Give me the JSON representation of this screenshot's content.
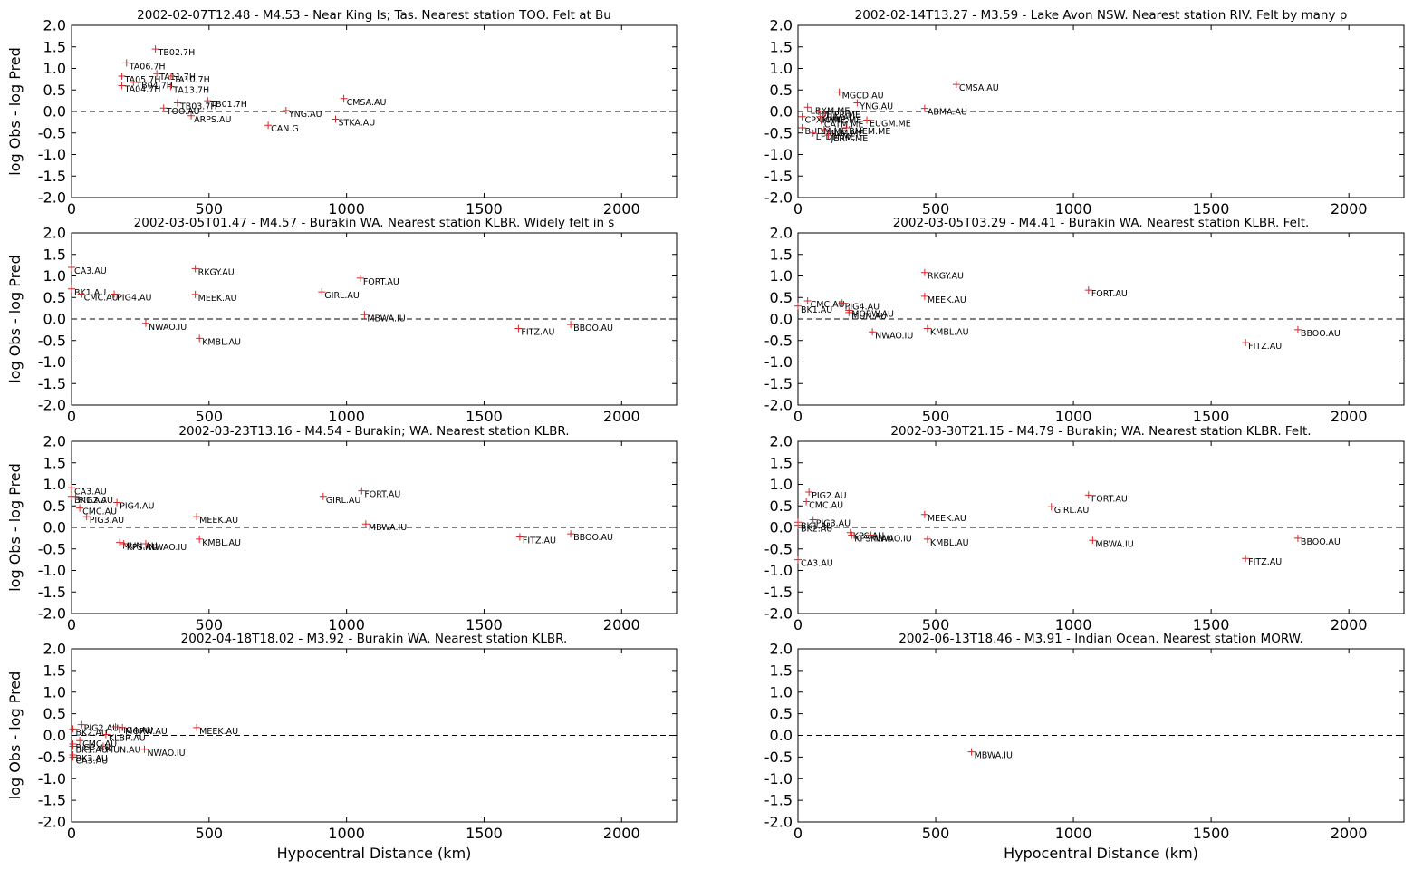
{
  "colors": {
    "marker": "#d62728",
    "axis": "#000000",
    "zero_line": "#000000"
  },
  "chart_data": [
    {
      "type": "scatter",
      "title": "2002-02-07T12.48 - M4.53 - Near King Is; Tas. Nearest station TOO. Felt at Bu",
      "xlabel": "",
      "ylabel": "log Obs - log Pred",
      "xlim": [
        0,
        2200
      ],
      "ylim": [
        -2.0,
        2.0
      ],
      "xticks": [
        "0",
        "500",
        "1000",
        "1500",
        "2000"
      ],
      "yticks": [
        "2.0",
        "1.5",
        "1.0",
        "0.5",
        "0.0",
        "-0.5",
        "-1.0",
        "-1.5",
        "-2.0"
      ],
      "zero_line": "dashed",
      "points": [
        {
          "label": "TB02.7H",
          "x": 305,
          "y": 1.45
        },
        {
          "label": "TA06.7H",
          "x": 200,
          "y": 1.13
        },
        {
          "label": "TA11.7H",
          "x": 310,
          "y": 0.88
        },
        {
          "label": "TA05.7H",
          "x": 183,
          "y": 0.82
        },
        {
          "label": "TA10.7H",
          "x": 362,
          "y": 0.82
        },
        {
          "label": "TB04.7H",
          "x": 225,
          "y": 0.68
        },
        {
          "label": "TA04.7H",
          "x": 183,
          "y": 0.6
        },
        {
          "label": "TA13.7H",
          "x": 360,
          "y": 0.58
        },
        {
          "label": "TB03.7H",
          "x": 385,
          "y": 0.2
        },
        {
          "label": "TB01.7H",
          "x": 495,
          "y": 0.25
        },
        {
          "label": "TOO.AU",
          "x": 335,
          "y": 0.08
        },
        {
          "label": "YNG.AU",
          "x": 780,
          "y": 0.02
        },
        {
          "label": "CMSA.AU",
          "x": 990,
          "y": 0.3
        },
        {
          "label": "ARPS.AU",
          "x": 435,
          "y": -0.1
        },
        {
          "label": "STKA.AU",
          "x": 960,
          "y": -0.18
        },
        {
          "label": "CAN.G",
          "x": 715,
          "y": -0.32
        }
      ]
    },
    {
      "type": "scatter",
      "title": "2002-02-14T13.27 - M3.59 - Lake Avon NSW. Nearest station RIV. Felt by many p",
      "xlabel": "",
      "ylabel": "",
      "xlim": [
        0,
        2200
      ],
      "ylim": [
        -2.0,
        2.0
      ],
      "xticks": [
        "0",
        "500",
        "1000",
        "1500",
        "2000"
      ],
      "yticks": [
        "2.0",
        "1.5",
        "1.0",
        "0.5",
        "0.0",
        "-0.5",
        "-1.0",
        "-1.5",
        "-2.0"
      ],
      "zero_line": "dashed",
      "points": [
        {
          "label": "CMSA.AU",
          "x": 575,
          "y": 0.63
        },
        {
          "label": "MGCD.AU",
          "x": 150,
          "y": 0.45
        },
        {
          "label": "YNG.AU",
          "x": 215,
          "y": 0.2
        },
        {
          "label": "LBXM.ME",
          "x": 35,
          "y": 0.1
        },
        {
          "label": "ABMA.AU",
          "x": 460,
          "y": 0.07
        },
        {
          "label": "MTPR.ME",
          "x": 75,
          "y": 0.0
        },
        {
          "label": "RIV.AU",
          "x": 95,
          "y": -0.05
        },
        {
          "label": "CPXM.ME",
          "x": 15,
          "y": -0.12
        },
        {
          "label": "KANE.ME",
          "x": 80,
          "y": -0.12
        },
        {
          "label": "EUGM.ME",
          "x": 250,
          "y": -0.2
        },
        {
          "label": "CATM.ME",
          "x": 85,
          "y": -0.22
        },
        {
          "label": "BUDM.ME",
          "x": 15,
          "y": -0.38
        },
        {
          "label": "BMEM.ME",
          "x": 175,
          "y": -0.38
        },
        {
          "label": "MNM.ME",
          "x": 95,
          "y": -0.42
        },
        {
          "label": "LFDM.ME",
          "x": 55,
          "y": -0.5
        },
        {
          "label": "JERM.ME",
          "x": 110,
          "y": -0.55
        }
      ]
    },
    {
      "type": "scatter",
      "title": "2002-03-05T01.47 - M4.57 - Burakin WA. Nearest station KLBR. Widely felt in s",
      "xlabel": "",
      "ylabel": "log Obs - log Pred",
      "xlim": [
        0,
        2200
      ],
      "ylim": [
        -2.0,
        2.0
      ],
      "xticks": [
        "0",
        "500",
        "1000",
        "1500",
        "2000"
      ],
      "yticks": [
        "2.0",
        "1.5",
        "1.0",
        "0.5",
        "0.0",
        "-0.5",
        "-1.0",
        "-1.5",
        "-2.0"
      ],
      "zero_line": "dashed",
      "points": [
        {
          "label": "CA3.AU",
          "x": 0,
          "y": 1.2
        },
        {
          "label": "RKGY.AU",
          "x": 450,
          "y": 1.17
        },
        {
          "label": "FORT.AU",
          "x": 1050,
          "y": 0.95
        },
        {
          "label": "BK1.AU",
          "x": 0,
          "y": 0.7
        },
        {
          "label": "GIRL.AU",
          "x": 910,
          "y": 0.63
        },
        {
          "label": "CMC.AU",
          "x": 35,
          "y": 0.58
        },
        {
          "label": "PIG4.AU",
          "x": 155,
          "y": 0.58
        },
        {
          "label": "MEEK.AU",
          "x": 450,
          "y": 0.57
        },
        {
          "label": "MBWA.IU",
          "x": 1065,
          "y": 0.1
        },
        {
          "label": "NWAO.IU",
          "x": 270,
          "y": -0.1
        },
        {
          "label": "BBOO.AU",
          "x": 1815,
          "y": -0.13
        },
        {
          "label": "FITZ.AU",
          "x": 1625,
          "y": -0.22
        },
        {
          "label": "KMBL.AU",
          "x": 465,
          "y": -0.45
        }
      ]
    },
    {
      "type": "scatter",
      "title": "2002-03-05T03.29 - M4.41 - Burakin WA. Nearest station KLBR. Felt.",
      "xlabel": "",
      "ylabel": "",
      "xlim": [
        0,
        2200
      ],
      "ylim": [
        -2.0,
        2.0
      ],
      "xticks": [
        "0",
        "500",
        "1000",
        "1500",
        "2000"
      ],
      "yticks": [
        "2.0",
        "1.5",
        "1.0",
        "0.5",
        "0.0",
        "-0.5",
        "-1.0",
        "-1.5",
        "-2.0"
      ],
      "zero_line": "dashed",
      "points": [
        {
          "label": "RKGY.AU",
          "x": 460,
          "y": 1.08
        },
        {
          "label": "FORT.AU",
          "x": 1055,
          "y": 0.67
        },
        {
          "label": "MEEK.AU",
          "x": 460,
          "y": 0.53
        },
        {
          "label": "CMC.AU",
          "x": 35,
          "y": 0.42
        },
        {
          "label": "PIG4.AU",
          "x": 160,
          "y": 0.37
        },
        {
          "label": "BK1.AU",
          "x": 0,
          "y": 0.3
        },
        {
          "label": "MORW.AU",
          "x": 185,
          "y": 0.2
        },
        {
          "label": "MUN.AU",
          "x": 185,
          "y": 0.15
        },
        {
          "label": "KMBL.AU",
          "x": 470,
          "y": -0.22
        },
        {
          "label": "BBOO.AU",
          "x": 1815,
          "y": -0.25
        },
        {
          "label": "NWAO.IU",
          "x": 270,
          "y": -0.3
        },
        {
          "label": "FITZ.AU",
          "x": 1625,
          "y": -0.55
        }
      ]
    },
    {
      "type": "scatter",
      "title": "2002-03-23T13.16 - M4.54 - Burakin; WA. Nearest station KLBR.",
      "xlabel": "",
      "ylabel": "log Obs - log Pred",
      "xlim": [
        0,
        2200
      ],
      "ylim": [
        -2.0,
        2.0
      ],
      "xticks": [
        "0",
        "500",
        "1000",
        "1500",
        "2000"
      ],
      "yticks": [
        "2.0",
        "1.5",
        "1.0",
        "0.5",
        "0.0",
        "-0.5",
        "-1.0",
        "-1.5",
        "-2.0"
      ],
      "zero_line": "dashed",
      "points": [
        {
          "label": "CA3.AU",
          "x": 0,
          "y": 0.92
        },
        {
          "label": "FORT.AU",
          "x": 1055,
          "y": 0.85
        },
        {
          "label": "GIRL.AU",
          "x": 915,
          "y": 0.72
        },
        {
          "label": "BK1.AU",
          "x": 0,
          "y": 0.72
        },
        {
          "label": "PIG2.AU",
          "x": 15,
          "y": 0.72
        },
        {
          "label": "PIG4.AU",
          "x": 165,
          "y": 0.58
        },
        {
          "label": "CMC.AU",
          "x": 30,
          "y": 0.45
        },
        {
          "label": "PIG3.AU",
          "x": 55,
          "y": 0.25
        },
        {
          "label": "MEEK.AU",
          "x": 455,
          "y": 0.25
        },
        {
          "label": "MBWA.IU",
          "x": 1070,
          "y": 0.08
        },
        {
          "label": "BBOO.AU",
          "x": 1815,
          "y": -0.15
        },
        {
          "label": "FITZ.AU",
          "x": 1630,
          "y": -0.22
        },
        {
          "label": "KMBL.AU",
          "x": 465,
          "y": -0.27
        },
        {
          "label": "MUN.AU",
          "x": 175,
          "y": -0.35
        },
        {
          "label": "KPS.AU",
          "x": 190,
          "y": -0.38
        },
        {
          "label": "NWAO.IU",
          "x": 270,
          "y": -0.38
        }
      ]
    },
    {
      "type": "scatter",
      "title": "2002-03-30T21.15 - M4.79 - Burakin; WA. Nearest station KLBR. Felt.",
      "xlabel": "",
      "ylabel": "",
      "xlim": [
        0,
        2200
      ],
      "ylim": [
        -2.0,
        2.0
      ],
      "xticks": [
        "0",
        "500",
        "1000",
        "1500",
        "2000"
      ],
      "yticks": [
        "2.0",
        "1.5",
        "1.0",
        "0.5",
        "0.0",
        "-0.5",
        "-1.0",
        "-1.5",
        "-2.0"
      ],
      "zero_line": "dashed",
      "points": [
        {
          "label": "PIG2.AU",
          "x": 40,
          "y": 0.82
        },
        {
          "label": "FORT.AU",
          "x": 1055,
          "y": 0.75
        },
        {
          "label": "CMC.AU",
          "x": 30,
          "y": 0.6
        },
        {
          "label": "GIRL.AU",
          "x": 920,
          "y": 0.48
        },
        {
          "label": "MEEK.AU",
          "x": 460,
          "y": 0.3
        },
        {
          "label": "PIG3.AU",
          "x": 55,
          "y": 0.18
        },
        {
          "label": "BK1.AU",
          "x": 0,
          "y": 0.12
        },
        {
          "label": "BK2.AU",
          "x": 0,
          "y": 0.05
        },
        {
          "label": "KPS.AU",
          "x": 190,
          "y": -0.12
        },
        {
          "label": "KPSM.AU",
          "x": 195,
          "y": -0.18
        },
        {
          "label": "NWAO.IU",
          "x": 265,
          "y": -0.18
        },
        {
          "label": "BBOO.AU",
          "x": 1815,
          "y": -0.25
        },
        {
          "label": "KMBL.AU",
          "x": 470,
          "y": -0.27
        },
        {
          "label": "MBWA.IU",
          "x": 1070,
          "y": -0.3
        },
        {
          "label": "FITZ.AU",
          "x": 1625,
          "y": -0.72
        },
        {
          "label": "CA3.AU",
          "x": 0,
          "y": -0.75
        }
      ]
    },
    {
      "type": "scatter",
      "title": "2002-04-18T18.02 - M3.92 - Burakin WA. Nearest station KLBR.",
      "xlabel": "Hypocentral Distance (km)",
      "ylabel": "log Obs - log Pred",
      "xlim": [
        0,
        2200
      ],
      "ylim": [
        -2.0,
        2.0
      ],
      "xticks": [
        "0",
        "500",
        "1000",
        "1500",
        "2000"
      ],
      "yticks": [
        "2.0",
        "1.5",
        "1.0",
        "0.5",
        "0.0",
        "-0.5",
        "-1.0",
        "-1.5",
        "-2.0"
      ],
      "zero_line": "dashed",
      "points": [
        {
          "label": "PIG2.AU",
          "x": 35,
          "y": 0.25
        },
        {
          "label": "PIG4.AU",
          "x": 160,
          "y": 0.2
        },
        {
          "label": "MORW.AU",
          "x": 185,
          "y": 0.18
        },
        {
          "label": "MEEK.AU",
          "x": 455,
          "y": 0.18
        },
        {
          "label": "BK2.AU",
          "x": 5,
          "y": 0.15
        },
        {
          "label": "KLBR.AU",
          "x": 125,
          "y": 0.02
        },
        {
          "label": "CMC.AU",
          "x": 30,
          "y": -0.12
        },
        {
          "label": "PIG3.AU",
          "x": 5,
          "y": -0.2
        },
        {
          "label": "BK1.AU",
          "x": 5,
          "y": -0.25
        },
        {
          "label": "MUN.AU",
          "x": 115,
          "y": -0.25
        },
        {
          "label": "NWAO.IU",
          "x": 265,
          "y": -0.32
        },
        {
          "label": "BK3.AU",
          "x": 5,
          "y": -0.45
        },
        {
          "label": "CA3.AU",
          "x": 5,
          "y": -0.5
        }
      ]
    },
    {
      "type": "scatter",
      "title": "2002-06-13T18.46 - M3.91 - Indian Ocean. Nearest station MORW.",
      "xlabel": "Hypocentral Distance (km)",
      "ylabel": "",
      "xlim": [
        0,
        2200
      ],
      "ylim": [
        -2.0,
        2.0
      ],
      "xticks": [
        "0",
        "500",
        "1000",
        "1500",
        "2000"
      ],
      "yticks": [
        "2.0",
        "1.5",
        "1.0",
        "0.5",
        "0.0",
        "-0.5",
        "-1.0",
        "-1.5",
        "-2.0"
      ],
      "zero_line": "dashed",
      "points": [
        {
          "label": "MBWA.IU",
          "x": 630,
          "y": -0.38
        }
      ]
    }
  ]
}
